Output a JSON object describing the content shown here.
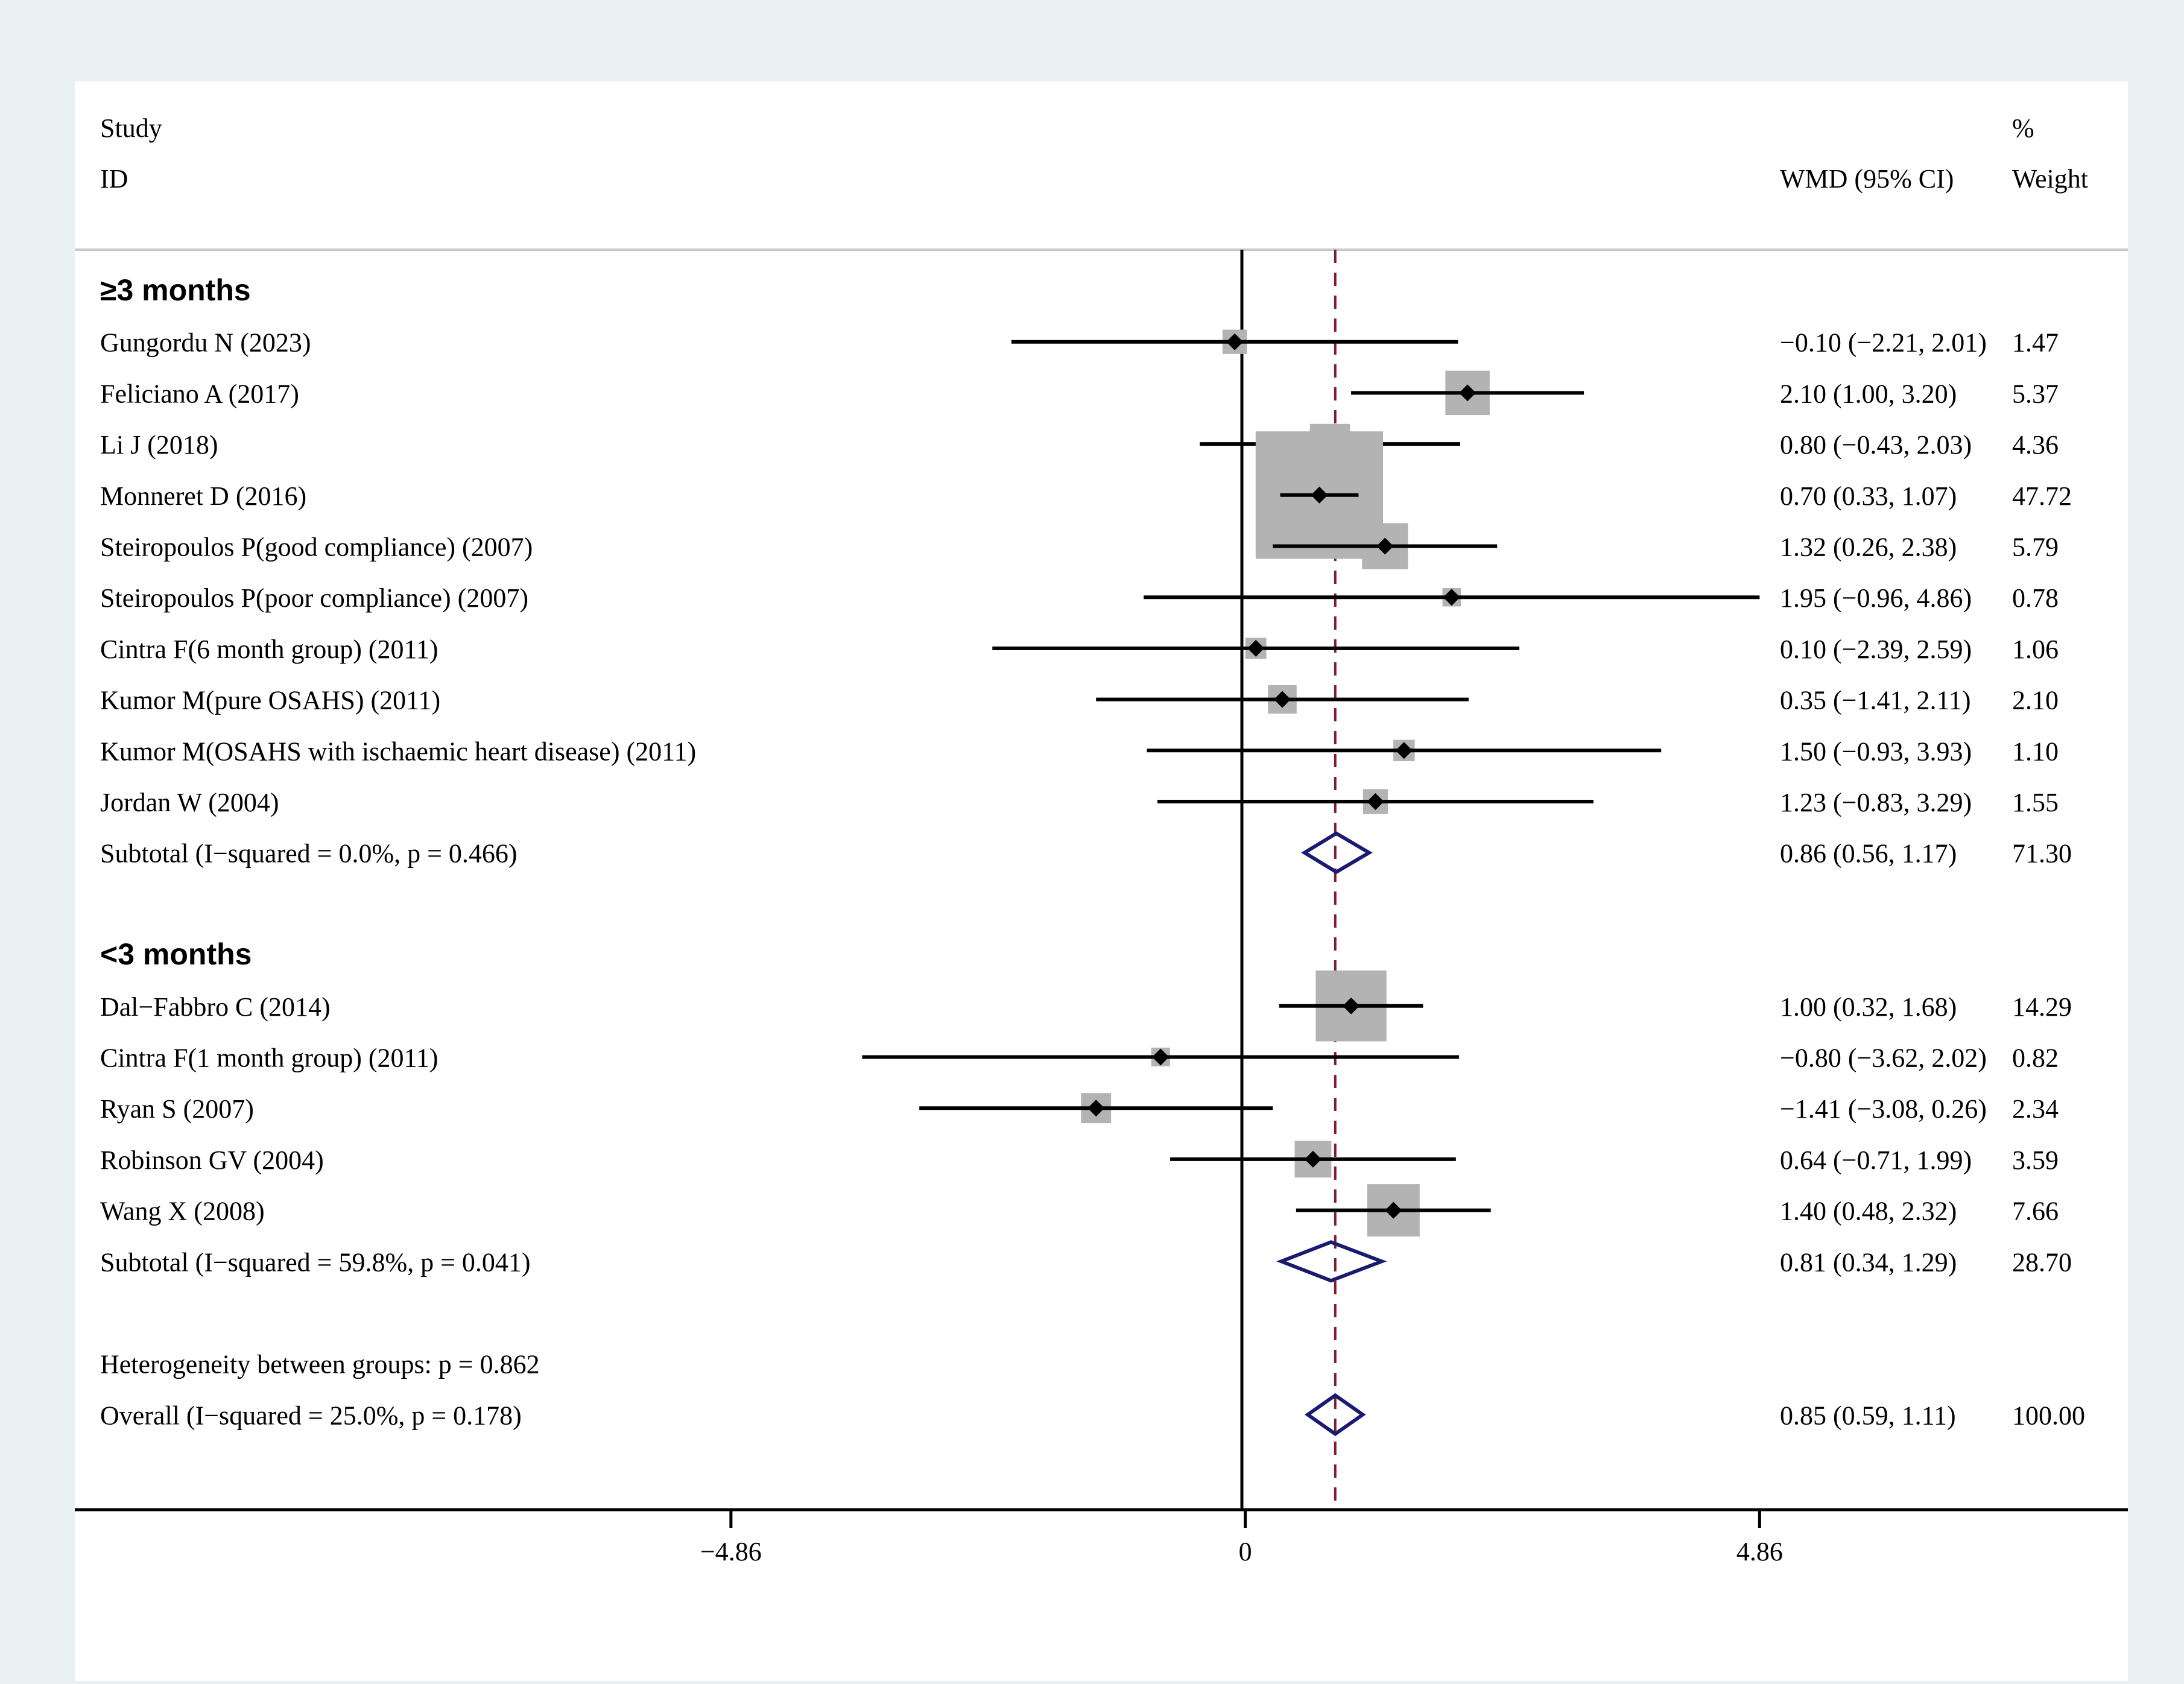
{
  "chart_data": {
    "type": "forest",
    "header": {
      "study_line1": "Study",
      "study_line2": "ID",
      "effect_label": "WMD (95% CI)",
      "weight_line1": "%",
      "weight_line2": "Weight"
    },
    "x_ticks": [
      {
        "value": -4.86,
        "label": "−4.86"
      },
      {
        "value": 0,
        "label": "0"
      },
      {
        "value": 4.86,
        "label": "4.86"
      }
    ],
    "xlim": [
      -11.06,
      8.34
    ],
    "overall_effect": 0.85,
    "rows": [
      {
        "kind": "header",
        "label": "≥3 months"
      },
      {
        "kind": "study",
        "label": "Gungordu N (2023)",
        "est": -0.1,
        "lo": -2.21,
        "hi": 2.01,
        "weight": 1.47,
        "ci_text": "−0.10 (−2.21, 2.01)",
        "weight_text": "1.47"
      },
      {
        "kind": "study",
        "label": "Feliciano A (2017)",
        "est": 2.1,
        "lo": 1.0,
        "hi": 3.2,
        "weight": 5.37,
        "ci_text": "2.10 (1.00, 3.20)",
        "weight_text": "5.37"
      },
      {
        "kind": "study",
        "label": "Li J (2018)",
        "est": 0.8,
        "lo": -0.43,
        "hi": 2.03,
        "weight": 4.36,
        "ci_text": "0.80 (−0.43, 2.03)",
        "weight_text": "4.36"
      },
      {
        "kind": "study",
        "label": "Monneret D (2016)",
        "est": 0.7,
        "lo": 0.33,
        "hi": 1.07,
        "weight": 47.72,
        "ci_text": "0.70 (0.33, 1.07)",
        "weight_text": "47.72"
      },
      {
        "kind": "study",
        "label": "Steiropoulos P(good compliance) (2007)",
        "est": 1.32,
        "lo": 0.26,
        "hi": 2.38,
        "weight": 5.79,
        "ci_text": "1.32 (0.26, 2.38)",
        "weight_text": "5.79"
      },
      {
        "kind": "study",
        "label": "Steiropoulos P(poor compliance) (2007)",
        "est": 1.95,
        "lo": -0.96,
        "hi": 4.86,
        "weight": 0.78,
        "ci_text": "1.95 (−0.96, 4.86)",
        "weight_text": "0.78"
      },
      {
        "kind": "study",
        "label": "Cintra F(6 month group) (2011)",
        "est": 0.1,
        "lo": -2.39,
        "hi": 2.59,
        "weight": 1.06,
        "ci_text": "0.10 (−2.39, 2.59)",
        "weight_text": "1.06"
      },
      {
        "kind": "study",
        "label": "Kumor M(pure OSAHS) (2011)",
        "est": 0.35,
        "lo": -1.41,
        "hi": 2.11,
        "weight": 2.1,
        "ci_text": "0.35 (−1.41, 2.11)",
        "weight_text": "2.10"
      },
      {
        "kind": "study",
        "label": "Kumor M(OSAHS with ischaemic heart disease) (2011)",
        "est": 1.5,
        "lo": -0.93,
        "hi": 3.93,
        "weight": 1.1,
        "ci_text": "1.50 (−0.93, 3.93)",
        "weight_text": "1.10"
      },
      {
        "kind": "study",
        "label": "Jordan W (2004)",
        "est": 1.23,
        "lo": -0.83,
        "hi": 3.29,
        "weight": 1.55,
        "ci_text": "1.23 (−0.83, 3.29)",
        "weight_text": "1.55"
      },
      {
        "kind": "subtotal",
        "label": "Subtotal  (I−squared = 0.0%, p = 0.466)",
        "est": 0.86,
        "lo": 0.56,
        "hi": 1.17,
        "ci_text": "0.86 (0.56, 1.17)",
        "weight_text": "71.30"
      },
      {
        "kind": "blank"
      },
      {
        "kind": "header",
        "label": "<3 months"
      },
      {
        "kind": "study",
        "label": "Dal−Fabbro C (2014)",
        "est": 1.0,
        "lo": 0.32,
        "hi": 1.68,
        "weight": 14.29,
        "ci_text": "1.00 (0.32, 1.68)",
        "weight_text": "14.29"
      },
      {
        "kind": "study",
        "label": "Cintra F(1 month group) (2011)",
        "est": -0.8,
        "lo": -3.62,
        "hi": 2.02,
        "weight": 0.82,
        "ci_text": "−0.80 (−3.62, 2.02)",
        "weight_text": "0.82"
      },
      {
        "kind": "study",
        "label": "Ryan S (2007)",
        "est": -1.41,
        "lo": -3.08,
        "hi": 0.26,
        "weight": 2.34,
        "ci_text": "−1.41 (−3.08, 0.26)",
        "weight_text": "2.34"
      },
      {
        "kind": "study",
        "label": "Robinson GV (2004)",
        "est": 0.64,
        "lo": -0.71,
        "hi": 1.99,
        "weight": 3.59,
        "ci_text": "0.64 (−0.71, 1.99)",
        "weight_text": "3.59"
      },
      {
        "kind": "study",
        "label": "Wang X (2008)",
        "est": 1.4,
        "lo": 0.48,
        "hi": 2.32,
        "weight": 7.66,
        "ci_text": "1.40 (0.48, 2.32)",
        "weight_text": "7.66"
      },
      {
        "kind": "subtotal",
        "label": "Subtotal  (I−squared = 59.8%, p = 0.041)",
        "est": 0.81,
        "lo": 0.34,
        "hi": 1.29,
        "ci_text": "0.81 (0.34, 1.29)",
        "weight_text": "28.70"
      },
      {
        "kind": "blank"
      },
      {
        "kind": "note",
        "label": "Heterogeneity between groups: p = 0.862"
      },
      {
        "kind": "overall",
        "label": "Overall  (I−squared = 25.0%, p = 0.178)",
        "est": 0.85,
        "lo": 0.59,
        "hi": 1.11,
        "ci_text": "0.85 (0.59, 1.11)",
        "weight_text": "100.00"
      }
    ]
  }
}
